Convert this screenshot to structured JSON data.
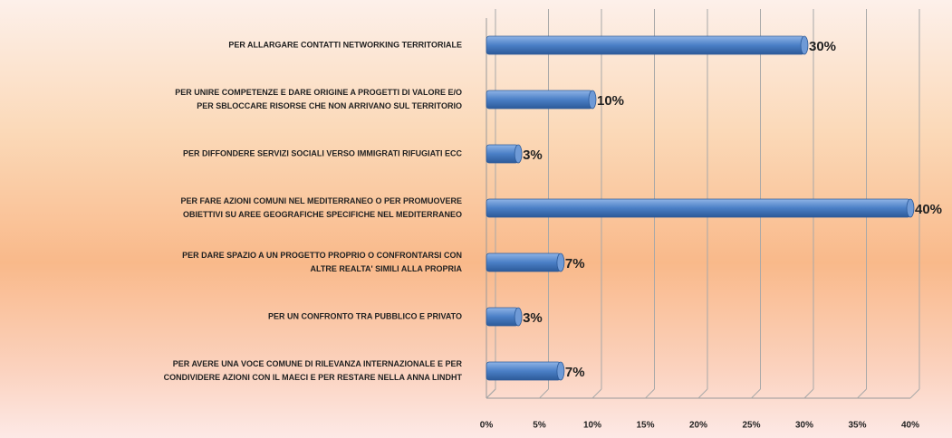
{
  "chart_data": {
    "type": "bar",
    "orientation": "horizontal",
    "categories": [
      "PER ALLARGARE CONTATTI NETWORKING TERRITORIALE",
      "PER UNIRE COMPETENZE E DARE ORIGINE A PROGETTI DI VALORE  E/O\nPER SBLOCCARE RISORSE CHE NON ARRIVANO SUL TERRITORIO",
      "PER DIFFONDERE SERVIZI SOCIALI VERSO IMMIGRATI RIFUGIATI ECC",
      "PER FARE AZIONI COMUNI NEL MEDITERRANEO O PER PROMUOVERE\nOBIETTIVI SU AREE GEOGRAFICHE SPECIFICHE NEL MEDITERRANEO",
      "PER DARE SPAZIO A UN PROGETTO PROPRIO O CONFRONTARSI CON\nALTRE REALTA' SIMILI ALLA PROPRIA",
      "PER UN CONFRONTO TRA PUBBLICO E PRIVATO",
      "PER AVERE UNA VOCE COMUNE DI RILEVANZA INTERNAZIONALE E PER\nCONDIVIDERE AZIONI CON IL MAECI E PER RESTARE NELLA ANNA LINDHT"
    ],
    "values": [
      30,
      10,
      3,
      40,
      7,
      3,
      7
    ],
    "value_labels": [
      "30%",
      "10%",
      "3%",
      "40%",
      "7%",
      "3%",
      "7%"
    ],
    "color": "#4a7fc6",
    "xlim": [
      0,
      40
    ],
    "xticks": [
      {
        "value": 0,
        "label": "0%"
      },
      {
        "value": 5,
        "label": "5%"
      },
      {
        "value": 10,
        "label": "10%"
      },
      {
        "value": 15,
        "label": "15%"
      },
      {
        "value": 20,
        "label": "20%"
      },
      {
        "value": 25,
        "label": "25%"
      },
      {
        "value": 30,
        "label": "30%"
      },
      {
        "value": 35,
        "label": "35%"
      },
      {
        "value": 40,
        "label": "40%"
      }
    ],
    "grid": true
  }
}
